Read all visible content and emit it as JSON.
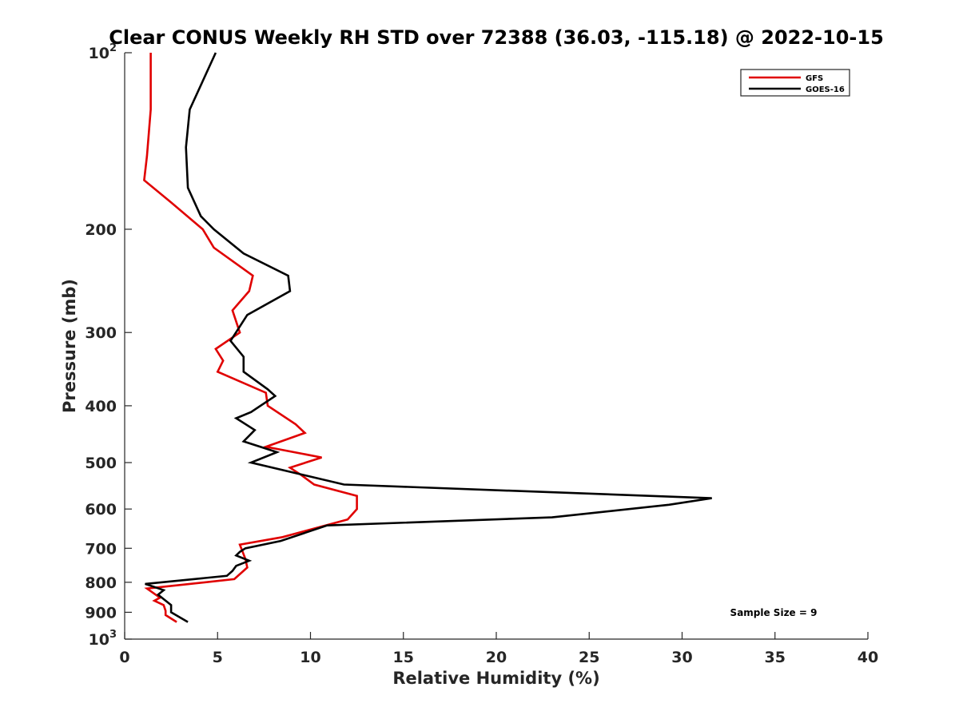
{
  "chart_data": {
    "type": "line",
    "title": "Clear CONUS Weekly RH STD over 72388 (36.03, -115.18) @ 2022-10-15",
    "xlabel": "Relative Humidity (%)",
    "ylabel": "Pressure (mb)",
    "xlim": [
      0,
      40
    ],
    "ylim": [
      100,
      1000
    ],
    "y_scale": "log",
    "y_reversed": true,
    "grid": false,
    "legend_position": "top-right",
    "x_ticks": [
      0,
      5,
      10,
      15,
      20,
      25,
      30,
      35,
      40
    ],
    "x_tick_labels": [
      "0",
      "5",
      "10",
      "15",
      "20",
      "25",
      "30",
      "35",
      "40"
    ],
    "y_ticks": [
      100,
      200,
      300,
      400,
      500,
      600,
      700,
      800,
      900,
      1000
    ],
    "y_tick_labels": [
      {
        "base": "10",
        "exp": "2"
      },
      {
        "base": "200",
        "exp": ""
      },
      {
        "base": "300",
        "exp": ""
      },
      {
        "base": "400",
        "exp": ""
      },
      {
        "base": "500",
        "exp": ""
      },
      {
        "base": "600",
        "exp": ""
      },
      {
        "base": "700",
        "exp": ""
      },
      {
        "base": "800",
        "exp": ""
      },
      {
        "base": "900",
        "exp": ""
      },
      {
        "base": "10",
        "exp": "3"
      }
    ],
    "annotation": "Sample Size = 9",
    "series": [
      {
        "name": "GFS",
        "color": "#e00000",
        "points": [
          [
            1.4,
            100
          ],
          [
            1.4,
            125
          ],
          [
            1.2,
            150
          ],
          [
            1.05,
            165
          ],
          [
            2.5,
            180
          ],
          [
            4.2,
            200
          ],
          [
            4.8,
            215
          ],
          [
            6.9,
            240
          ],
          [
            6.7,
            255
          ],
          [
            5.8,
            275
          ],
          [
            6.2,
            300
          ],
          [
            4.9,
            320
          ],
          [
            5.3,
            335
          ],
          [
            5.0,
            350
          ],
          [
            7.6,
            380
          ],
          [
            7.7,
            400
          ],
          [
            9.2,
            430
          ],
          [
            9.7,
            445
          ],
          [
            7.6,
            470
          ],
          [
            10.6,
            490
          ],
          [
            8.9,
            510
          ],
          [
            9.5,
            525
          ],
          [
            10.2,
            545
          ],
          [
            12.5,
            570
          ],
          [
            12.5,
            600
          ],
          [
            12.0,
            625
          ],
          [
            8.5,
            670
          ],
          [
            6.2,
            690
          ],
          [
            6.5,
            730
          ],
          [
            6.6,
            755
          ],
          [
            5.9,
            790
          ],
          [
            1.2,
            820
          ],
          [
            1.9,
            850
          ],
          [
            1.6,
            860
          ],
          [
            2.1,
            875
          ],
          [
            2.2,
            895
          ],
          [
            2.2,
            910
          ],
          [
            2.8,
            935
          ]
        ]
      },
      {
        "name": "GOES-16",
        "color": "#000000",
        "points": [
          [
            4.9,
            100
          ],
          [
            3.5,
            125
          ],
          [
            3.3,
            145
          ],
          [
            3.4,
            170
          ],
          [
            4.1,
            190
          ],
          [
            4.8,
            200
          ],
          [
            6.4,
            220
          ],
          [
            8.8,
            240
          ],
          [
            8.9,
            255
          ],
          [
            6.6,
            280
          ],
          [
            5.7,
            310
          ],
          [
            6.4,
            330
          ],
          [
            6.4,
            350
          ],
          [
            7.7,
            375
          ],
          [
            8.1,
            385
          ],
          [
            6.8,
            410
          ],
          [
            6.0,
            420
          ],
          [
            7.0,
            440
          ],
          [
            6.4,
            460
          ],
          [
            8.2,
            480
          ],
          [
            6.8,
            500
          ],
          [
            11.8,
            545
          ],
          [
            31.6,
            575
          ],
          [
            29.3,
            590
          ],
          [
            23.0,
            620
          ],
          [
            10.9,
            640
          ],
          [
            8.4,
            680
          ],
          [
            6.5,
            700
          ],
          [
            6.2,
            710
          ],
          [
            6.0,
            720
          ],
          [
            6.7,
            735
          ],
          [
            6.0,
            750
          ],
          [
            5.8,
            765
          ],
          [
            5.5,
            780
          ],
          [
            1.1,
            805
          ],
          [
            2.1,
            825
          ],
          [
            1.8,
            840
          ],
          [
            2.5,
            875
          ],
          [
            2.5,
            900
          ],
          [
            3.4,
            935
          ]
        ]
      }
    ]
  }
}
